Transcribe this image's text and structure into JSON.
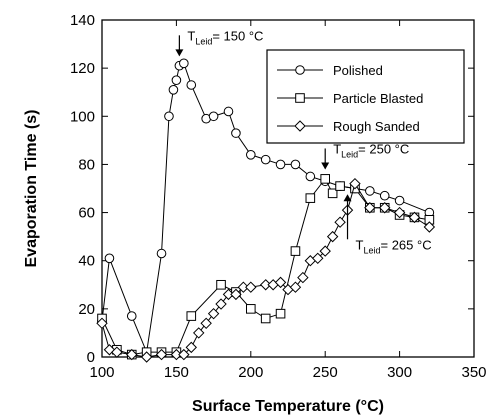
{
  "chart_data": {
    "type": "line",
    "xlabel": "Surface Temperature (°C)",
    "ylabel": "Evaporation Time (s)",
    "xlim": [
      100,
      350
    ],
    "ylim": [
      0,
      140
    ],
    "xticks": [
      100,
      150,
      200,
      250,
      300,
      350
    ],
    "yticks": [
      0,
      20,
      40,
      60,
      80,
      100,
      120,
      140
    ],
    "grid": false,
    "legend_position": "top-right",
    "series": [
      {
        "name": "Polished",
        "marker": "circle",
        "points": [
          [
            100,
            15
          ],
          [
            105,
            41
          ],
          [
            120,
            17
          ],
          [
            130,
            2
          ],
          [
            140,
            43
          ],
          [
            145,
            100
          ],
          [
            148,
            111
          ],
          [
            150,
            115
          ],
          [
            152,
            121
          ],
          [
            155,
            122
          ],
          [
            160,
            113
          ],
          [
            170,
            99
          ],
          [
            175,
            100
          ],
          [
            185,
            102
          ],
          [
            190,
            93
          ],
          [
            200,
            84
          ],
          [
            210,
            82
          ],
          [
            220,
            80
          ],
          [
            230,
            80
          ],
          [
            240,
            75
          ],
          [
            250,
            73
          ],
          [
            260,
            71
          ],
          [
            270,
            70
          ],
          [
            280,
            69
          ],
          [
            290,
            67
          ],
          [
            300,
            65
          ],
          [
            320,
            60
          ]
        ]
      },
      {
        "name": "Particle Blasted",
        "marker": "square",
        "points": [
          [
            100,
            16
          ],
          [
            110,
            3
          ],
          [
            120,
            1
          ],
          [
            130,
            2
          ],
          [
            140,
            2
          ],
          [
            150,
            2
          ],
          [
            160,
            17
          ],
          [
            180,
            30
          ],
          [
            190,
            27
          ],
          [
            200,
            20
          ],
          [
            210,
            16
          ],
          [
            220,
            18
          ],
          [
            230,
            44
          ],
          [
            240,
            66
          ],
          [
            250,
            74
          ],
          [
            255,
            68
          ],
          [
            260,
            71
          ],
          [
            270,
            70
          ],
          [
            280,
            62
          ],
          [
            290,
            62
          ],
          [
            300,
            59
          ],
          [
            310,
            58
          ],
          [
            320,
            57
          ]
        ]
      },
      {
        "name": "Rough Sanded",
        "marker": "diamond",
        "points": [
          [
            100,
            14
          ],
          [
            105,
            3
          ],
          [
            110,
            2
          ],
          [
            120,
            1
          ],
          [
            130,
            0
          ],
          [
            140,
            1
          ],
          [
            150,
            1
          ],
          [
            155,
            1
          ],
          [
            160,
            4
          ],
          [
            165,
            10
          ],
          [
            170,
            14
          ],
          [
            175,
            18
          ],
          [
            180,
            22
          ],
          [
            185,
            26
          ],
          [
            190,
            26
          ],
          [
            195,
            29
          ],
          [
            200,
            29
          ],
          [
            210,
            30
          ],
          [
            215,
            30
          ],
          [
            220,
            31
          ],
          [
            225,
            28
          ],
          [
            230,
            29
          ],
          [
            235,
            33
          ],
          [
            240,
            40
          ],
          [
            245,
            41
          ],
          [
            250,
            44
          ],
          [
            255,
            50
          ],
          [
            260,
            56
          ],
          [
            265,
            61
          ],
          [
            270,
            72
          ],
          [
            280,
            62
          ],
          [
            290,
            62
          ],
          [
            300,
            60
          ],
          [
            310,
            58
          ],
          [
            320,
            54
          ]
        ]
      }
    ],
    "annotations": [
      {
        "text_main": "T",
        "text_sub": "Leid",
        "text_rest": "= 150 °C",
        "x": 152,
        "y": 122,
        "arrow": "down"
      },
      {
        "text_main": "T",
        "text_sub": "Leid",
        "text_rest": "= 250 °C",
        "x": 250,
        "y": 75,
        "arrow": "down"
      },
      {
        "text_main": "T",
        "text_sub": "Leid",
        "text_rest": "= 265 °C",
        "x": 265,
        "y": 73,
        "arrow": "up"
      }
    ]
  }
}
